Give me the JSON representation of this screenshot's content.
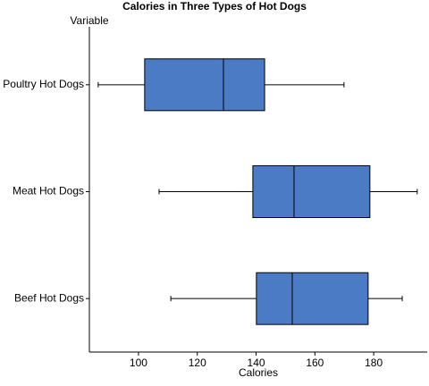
{
  "chart_data": {
    "type": "box",
    "title": "Calories in Three Types of Hot Dogs",
    "y_label": "Variable",
    "x_label": "Calories",
    "categories": [
      "Poultry Hot Dogs",
      "Meat Hot Dogs",
      "Beef Hot Dogs"
    ],
    "boxes": [
      {
        "min": 86.3,
        "q1": 102.1,
        "median": 128.9,
        "q3": 142.9,
        "max": 169.9
      },
      {
        "min": 107,
        "q1": 138.9,
        "median": 152.9,
        "q3": 178.7,
        "max": 194.8
      },
      {
        "min": 111,
        "q1": 140.1,
        "median": 152.3,
        "q3": 178.1,
        "max": 189.7
      }
    ],
    "color": "#4a7bc4",
    "xlim": [
      83.3,
      198.2
    ],
    "xticks": [
      100,
      120,
      140,
      160,
      180
    ]
  }
}
